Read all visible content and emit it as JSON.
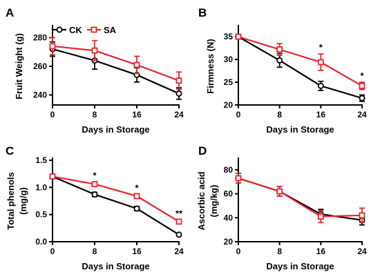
{
  "colors": {
    "CK": "#000000",
    "SA": "#e8232a"
  },
  "chart_data": [
    {
      "type": "line",
      "panel_label": "A",
      "xlabel": "Days in Storage",
      "ylabel": "Fruit Weight  (g)",
      "x": [
        0,
        8,
        16,
        24
      ],
      "xticks": [
        "0",
        "8",
        "16",
        "24"
      ],
      "xlim": [
        0,
        24
      ],
      "ylim": [
        233,
        287
      ],
      "yticks": [
        240,
        260,
        280
      ],
      "yticklabels": [
        "240",
        "260",
        "280"
      ],
      "legend": {
        "show": true,
        "placement": "top-left"
      },
      "series": [
        {
          "name": "CK",
          "values": [
            272,
            264,
            254,
            241
          ],
          "err": [
            5,
            6,
            5,
            4
          ],
          "marker": "circle"
        },
        {
          "name": "SA",
          "values": [
            274,
            271,
            261,
            250
          ],
          "err": [
            6,
            7,
            6,
            6
          ],
          "marker": "square"
        }
      ],
      "annotations": []
    },
    {
      "type": "line",
      "panel_label": "B",
      "xlabel": "Days in Storage",
      "ylabel": "Firmness (N)",
      "x": [
        0,
        8,
        16,
        24
      ],
      "xticks": [
        "0",
        "8",
        "16",
        "24"
      ],
      "xlim": [
        0,
        24
      ],
      "ylim": [
        20,
        37
      ],
      "yticks": [
        20,
        25,
        30,
        35
      ],
      "yticklabels": [
        "20",
        "25",
        "30",
        "35"
      ],
      "legend": {
        "show": false
      },
      "series": [
        {
          "name": "CK",
          "values": [
            35,
            29.8,
            24.2,
            21.5
          ],
          "err": [
            0.5,
            1.5,
            1.0,
            0.7
          ],
          "marker": "circle"
        },
        {
          "name": "SA",
          "values": [
            35,
            32.2,
            29.4,
            24.2
          ],
          "err": [
            0.5,
            1.3,
            1.8,
            0.8
          ],
          "marker": "square"
        }
      ],
      "annotations": [
        {
          "x": 16,
          "text": "*"
        },
        {
          "x": 24,
          "text": "*"
        }
      ]
    },
    {
      "type": "line",
      "panel_label": "C",
      "xlabel": "Days in Storage",
      "ylabel": "Total phenols",
      "ylabel2": "(mg/g)",
      "x": [
        0,
        8,
        16,
        24
      ],
      "xticks": [
        "0",
        "8",
        "16",
        "24"
      ],
      "xlim": [
        0,
        24
      ],
      "ylim": [
        0,
        1.5
      ],
      "yticks": [
        0,
        0.5,
        1.0,
        1.5
      ],
      "yticklabels": [
        "0.0",
        "0.5",
        "1.0",
        "1.5"
      ],
      "legend": {
        "show": false
      },
      "series": [
        {
          "name": "CK",
          "values": [
            1.2,
            0.87,
            0.61,
            0.13
          ],
          "err": [
            0.03,
            0.04,
            0.04,
            0.02
          ],
          "marker": "circle"
        },
        {
          "name": "SA",
          "values": [
            1.2,
            1.06,
            0.84,
            0.37
          ],
          "err": [
            0.03,
            0.04,
            0.03,
            0.03
          ],
          "marker": "square"
        }
      ],
      "annotations": [
        {
          "x": 8,
          "text": "*"
        },
        {
          "x": 16,
          "text": "*"
        },
        {
          "x": 24,
          "text": "**"
        }
      ]
    },
    {
      "type": "line",
      "panel_label": "D",
      "xlabel": "Days in Storage",
      "ylabel": "Ascorbic acid",
      "ylabel2": "(mg/kg)",
      "x": [
        0,
        8,
        16,
        24
      ],
      "xticks": [
        "0",
        "8",
        "16",
        "24"
      ],
      "xlim": [
        0,
        24
      ],
      "ylim": [
        20,
        88
      ],
      "yticks": [
        20,
        40,
        60,
        80
      ],
      "yticklabels": [
        "20",
        "40",
        "60",
        "80"
      ],
      "legend": {
        "show": false
      },
      "series": [
        {
          "name": "CK",
          "values": [
            73,
            62,
            43,
            38
          ],
          "err": [
            4,
            4,
            4,
            4
          ],
          "marker": "circle"
        },
        {
          "name": "SA",
          "values": [
            73,
            62,
            41,
            42
          ],
          "err": [
            4,
            4,
            5,
            6
          ],
          "marker": "square"
        }
      ],
      "annotations": []
    }
  ]
}
